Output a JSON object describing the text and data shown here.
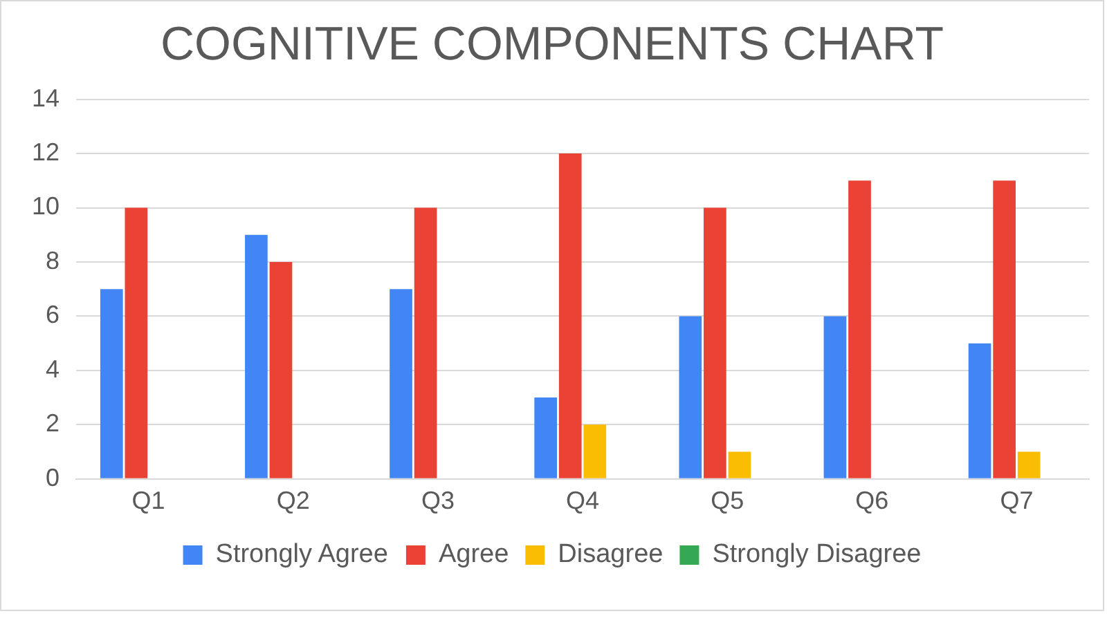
{
  "chart_data": {
    "type": "bar",
    "title": "COGNITIVE COMPONENTS CHART",
    "categories": [
      "Q1",
      "Q2",
      "Q3",
      "Q4",
      "Q5",
      "Q6",
      "Q7"
    ],
    "series": [
      {
        "name": "Strongly Agree",
        "color": "#4285f4",
        "values": [
          7,
          9,
          7,
          3,
          6,
          6,
          5
        ]
      },
      {
        "name": "Agree",
        "color": "#ea4335",
        "values": [
          10,
          8,
          10,
          12,
          10,
          11,
          11
        ]
      },
      {
        "name": "Disagree",
        "color": "#fbbc04",
        "values": [
          0,
          0,
          0,
          2,
          1,
          0,
          1
        ]
      },
      {
        "name": "Strongly Disagree",
        "color": "#34a853",
        "values": [
          0,
          0,
          0,
          0,
          0,
          0,
          0
        ]
      }
    ],
    "ylim": [
      0,
      14
    ],
    "yticks": [
      0,
      2,
      4,
      6,
      8,
      10,
      12,
      14
    ],
    "grid": "y",
    "legend": "bottom"
  }
}
